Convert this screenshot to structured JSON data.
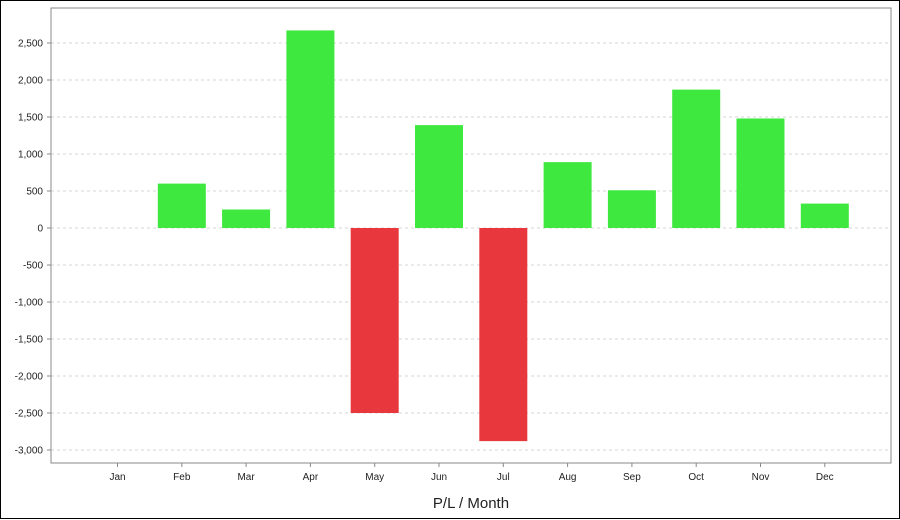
{
  "chart_data": {
    "type": "bar",
    "title": "",
    "xlabel": "P/L / Month",
    "ylabel": "",
    "categories": [
      "Jan",
      "Feb",
      "Mar",
      "Apr",
      "May",
      "Jun",
      "Jul",
      "Aug",
      "Sep",
      "Oct",
      "Nov",
      "Dec"
    ],
    "values": [
      0,
      600,
      250,
      2670,
      -2500,
      1390,
      -2880,
      890,
      510,
      1870,
      1480,
      330
    ],
    "ylim": [
      -3000,
      2750
    ],
    "yticks": [
      2500,
      2000,
      1500,
      1000,
      500,
      0,
      -500,
      -1000,
      -1500,
      -2000,
      -2500,
      -3000
    ],
    "ytick_labels": [
      "2,500",
      "2,000",
      "1,500",
      "1,000",
      "500",
      "0",
      "-500",
      "-1,000",
      "-1,500",
      "-2,000",
      "-2,500",
      "-3,000"
    ],
    "grid": true,
    "legend": "none",
    "colors": {
      "positive": "#3ee83e",
      "negative": "#e8383d",
      "grid": "#d4d4d4",
      "axis": "#888888"
    }
  }
}
